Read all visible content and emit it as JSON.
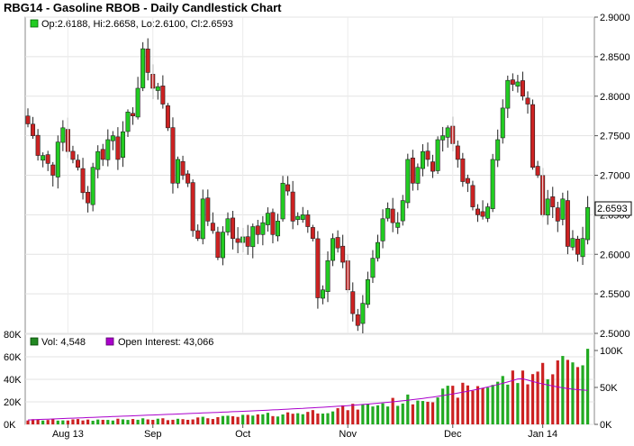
{
  "chart_data": [
    {
      "type": "candlestick",
      "title": "RBG14 - Gasoline RBOB - Daily Candlestick Chart",
      "legend": "Op:2.6188, Hi:2.6658, Lo:2.6100, Cl:2.6593",
      "last_price_label": "2.6593",
      "ylim": [
        2.5,
        2.9
      ],
      "y_ticks": [
        "2.5000",
        "2.5500",
        "2.6000",
        "2.6500",
        "2.7000",
        "2.7500",
        "2.8000",
        "2.8500",
        "2.9000"
      ],
      "x_ticks": [
        "Aug 13",
        "Sep",
        "Oct",
        "Nov",
        "Dec",
        "Jan 14"
      ],
      "up_color": "#22cc22",
      "down_color": "#cc2222",
      "close_values": [
        2.765,
        2.75,
        2.725,
        2.725,
        2.715,
        2.7,
        2.742,
        2.76,
        2.73,
        2.72,
        2.71,
        2.678,
        2.665,
        2.71,
        2.73,
        2.72,
        2.745,
        2.75,
        2.72,
        2.755,
        2.78,
        2.775,
        2.81,
        2.86,
        2.83,
        2.81,
        2.812,
        2.79,
        2.76,
        2.69,
        2.72,
        2.7,
        2.69,
        2.63,
        2.62,
        2.67,
        2.642,
        2.63,
        2.596,
        2.628,
        2.645,
        2.62,
        2.615,
        2.622,
        2.61,
        2.635,
        2.625,
        2.64,
        2.652,
        2.625,
        2.642,
        2.69,
        2.68,
        2.642,
        2.648,
        2.65,
        2.635,
        2.62,
        2.545,
        2.555,
        2.592,
        2.62,
        2.608,
        2.59,
        2.555,
        2.525,
        2.51,
        2.538,
        2.568,
        2.595,
        2.615,
        2.645,
        2.658,
        2.64,
        2.64,
        2.668,
        2.72,
        2.69,
        2.71,
        2.73,
        2.72,
        2.705,
        2.745,
        2.75,
        2.76,
        2.74,
        2.72,
        2.692,
        2.69,
        2.66,
        2.65,
        2.648,
        2.66,
        2.72,
        2.745,
        2.785,
        2.82,
        2.815,
        2.818,
        2.8,
        2.79,
        2.71,
        2.7,
        2.65,
        2.67,
        2.66,
        2.642,
        2.67,
        2.61,
        2.62,
        2.6,
        2.62,
        2.6593
      ],
      "volume_ylim": [
        0,
        80000
      ],
      "volume_ticks": [
        "0K",
        "20K",
        "40K",
        "60K",
        "80K"
      ],
      "oi_ticks": [
        "0K",
        "50K",
        "100K"
      ],
      "volume_legend": "Vol: 4,548",
      "oi_legend": "Open Interest: 43,066",
      "volume_color_up": "#22aa22",
      "volume_color_down": "#cc2222",
      "oi_color": "#aa00cc"
    }
  ]
}
